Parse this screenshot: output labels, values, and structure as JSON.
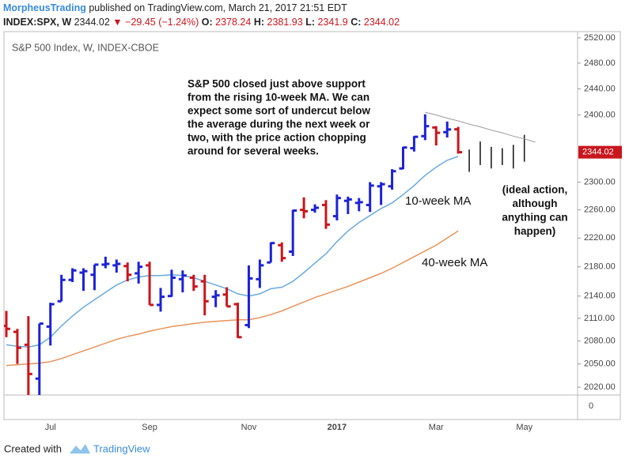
{
  "header": {
    "author": "MorpheusTrading",
    "published": "published on TradingView.com, March 21, 2017 21:51 EDT",
    "symbol": "INDEX:SPX, W",
    "last": "2344.02",
    "change": "−29.45",
    "change_pct": "(−1.24%)",
    "o_label": "O:",
    "h_label": "H:",
    "l_label": "L:",
    "c_label": "C:"
  },
  "footer": {
    "created": "Created with",
    "brand": "TradingView"
  },
  "chart_data": {
    "type": "ohlc",
    "title": "S&P 500 Index, W, INDEX-CBOE",
    "log_scale": true,
    "up_color": "#1d22d8",
    "down_color": "#c8161d",
    "projected_color": "#111111",
    "trendline_color": "#9a9a9a",
    "categories": [
      null,
      null,
      null,
      null,
      "Jul",
      null,
      null,
      null,
      null,
      null,
      null,
      null,
      null,
      "Sep",
      null,
      null,
      null,
      null,
      null,
      null,
      null,
      null,
      "Nov",
      null,
      null,
      null,
      null,
      null,
      null,
      null,
      "2017",
      null,
      null,
      null,
      null,
      null,
      null,
      null,
      null,
      "Mar",
      null,
      null,
      null,
      null,
      null,
      null,
      null,
      "May",
      null
    ],
    "open": [
      2100,
      2092,
      2075,
      2031,
      2099,
      2133,
      2162,
      2172,
      2169,
      2183,
      2182,
      2181,
      2171,
      2182,
      2128,
      2140,
      2163,
      2165,
      2160,
      2139,
      2142,
      2129,
      2101,
      2163,
      2186,
      2210,
      2201,
      2260,
      2260,
      2267,
      2251,
      2273,
      2270,
      2267,
      2294,
      2294,
      2320,
      2350,
      2368,
      2381,
      2374,
      2378.24,
      null,
      null,
      null,
      null,
      null,
      null,
      null
    ],
    "high": [
      2120,
      2096,
      2113,
      2103,
      2131,
      2169,
      2178,
      2178,
      2183,
      2194,
      2190,
      2186,
      2187,
      2187,
      2151,
      2176,
      2175,
      2169,
      2169,
      2148,
      2152,
      2131,
      2182,
      2190,
      2214,
      2214,
      2260,
      2278,
      2268,
      2274,
      2282,
      2279,
      2277,
      2300,
      2300,
      2319,
      2352,
      2368,
      2401,
      2383,
      2390,
      2381.93,
      null,
      null,
      null,
      null,
      null,
      null,
      null
    ],
    "low": [
      2085,
      2050,
      1992,
      1991,
      2074,
      2133,
      2159,
      2147,
      2148,
      2178,
      2172,
      2160,
      2157,
      2128,
      2119,
      2139,
      2145,
      2147,
      2114,
      2125,
      2126,
      2084,
      2097,
      2151,
      2186,
      2187,
      2195,
      2248,
      2256,
      2233,
      2245,
      2254,
      2258,
      2257,
      2267,
      2289,
      2319,
      2345,
      2362,
      2354,
      2366,
      2341.9,
      null,
      null,
      null,
      null,
      null,
      null,
      null
    ],
    "close": [
      2096,
      2071,
      2037,
      2103,
      2129,
      2162,
      2175,
      2174,
      2183,
      2184,
      2184,
      2169,
      2180,
      2128,
      2139,
      2165,
      2168,
      2153,
      2133,
      2141,
      2126,
      2085,
      2164,
      2182,
      2213,
      2192,
      2259,
      2258,
      2263,
      2239,
      2277,
      2275,
      2271,
      2295,
      2297,
      2316,
      2351,
      2367,
      2383,
      2373,
      2378,
      2344.02,
      null,
      null,
      null,
      null,
      null,
      null,
      null
    ],
    "series": [
      {
        "name": "10-week MA",
        "color": "#6aa9dc",
        "values": [
          2075,
          2073,
          2072,
          2075,
          2085,
          2100,
          2113,
          2125,
          2135,
          2145,
          2155,
          2162,
          2166,
          2168,
          2168,
          2169,
          2168,
          2165,
          2160,
          2155,
          2150,
          2143,
          2140,
          2143,
          2150,
          2152,
          2160,
          2172,
          2185,
          2198,
          2215,
          2230,
          2242,
          2252,
          2262,
          2270,
          2282,
          2295,
          2310,
          2322,
          2332,
          2338,
          null,
          null,
          null,
          null,
          null,
          null,
          null
        ]
      },
      {
        "name": "40-week MA",
        "color": "#e8935a",
        "values": [
          2048,
          2049,
          2050,
          2051,
          2053,
          2057,
          2062,
          2067,
          2072,
          2077,
          2082,
          2086,
          2089,
          2093,
          2096,
          2099,
          2101,
          2103,
          2105,
          2106,
          2107,
          2108,
          2108,
          2111,
          2115,
          2120,
          2126,
          2132,
          2138,
          2143,
          2148,
          2153,
          2159,
          2165,
          2171,
          2178,
          2186,
          2194,
          2202,
          2210,
          2220,
          2230,
          null,
          null,
          null,
          null,
          null,
          null,
          null
        ]
      }
    ],
    "projected_high": [
      null,
      null,
      null,
      null,
      null,
      null,
      null,
      null,
      null,
      null,
      null,
      null,
      null,
      null,
      null,
      null,
      null,
      null,
      null,
      null,
      null,
      null,
      null,
      null,
      null,
      null,
      null,
      null,
      null,
      null,
      null,
      null,
      null,
      null,
      null,
      null,
      null,
      null,
      null,
      null,
      null,
      null,
      2348,
      2360,
      2352,
      2350,
      2355,
      2370,
      null
    ],
    "projected_low": [
      null,
      null,
      null,
      null,
      null,
      null,
      null,
      null,
      null,
      null,
      null,
      null,
      null,
      null,
      null,
      null,
      null,
      null,
      null,
      null,
      null,
      null,
      null,
      null,
      null,
      null,
      null,
      null,
      null,
      null,
      null,
      null,
      null,
      null,
      null,
      null,
      null,
      null,
      null,
      null,
      null,
      null,
      2315,
      2325,
      2320,
      2325,
      2320,
      2330,
      null
    ],
    "trendline": [
      null,
      null,
      null,
      null,
      null,
      null,
      null,
      null,
      null,
      null,
      null,
      null,
      null,
      null,
      null,
      null,
      null,
      null,
      null,
      null,
      null,
      null,
      null,
      null,
      null,
      null,
      null,
      null,
      null,
      null,
      null,
      null,
      null,
      null,
      null,
      null,
      null,
      null,
      2404,
      2400,
      2395,
      2391,
      2386,
      2382,
      2377,
      2373,
      2368,
      2364,
      2359
    ],
    "ylim": [
      2010,
      2530
    ],
    "yticks": [
      {
        "value": 2520,
        "label": "2520.00"
      },
      {
        "value": 2480,
        "label": "2480.00"
      },
      {
        "value": 2440,
        "label": "2440.00"
      },
      {
        "value": 2400,
        "label": "2400.00"
      },
      {
        "value": 2300,
        "label": "2300.00"
      },
      {
        "value": 2260,
        "label": "2260.00"
      },
      {
        "value": 2220,
        "label": "2220.00"
      },
      {
        "value": 2180,
        "label": "2180.00"
      },
      {
        "value": 2140,
        "label": "2140.00"
      },
      {
        "value": 2110,
        "label": "2110.00"
      },
      {
        "value": 2080,
        "label": "2080.00"
      },
      {
        "value": 2050,
        "label": "2050.00"
      },
      {
        "value": 2020,
        "label": "2020.00"
      }
    ],
    "lower_pane_yticks": [
      0
    ],
    "annotations": {
      "comment": [
        "S&P 500 closed just above support",
        "from the rising 10-week MA.  We can",
        "expect some sort of undercut below",
        "the average during the next week or",
        "two, with the price action chopping",
        "around for several weeks."
      ],
      "ideal": [
        "(ideal action,",
        "although",
        "anything can",
        "happen)"
      ]
    }
  }
}
